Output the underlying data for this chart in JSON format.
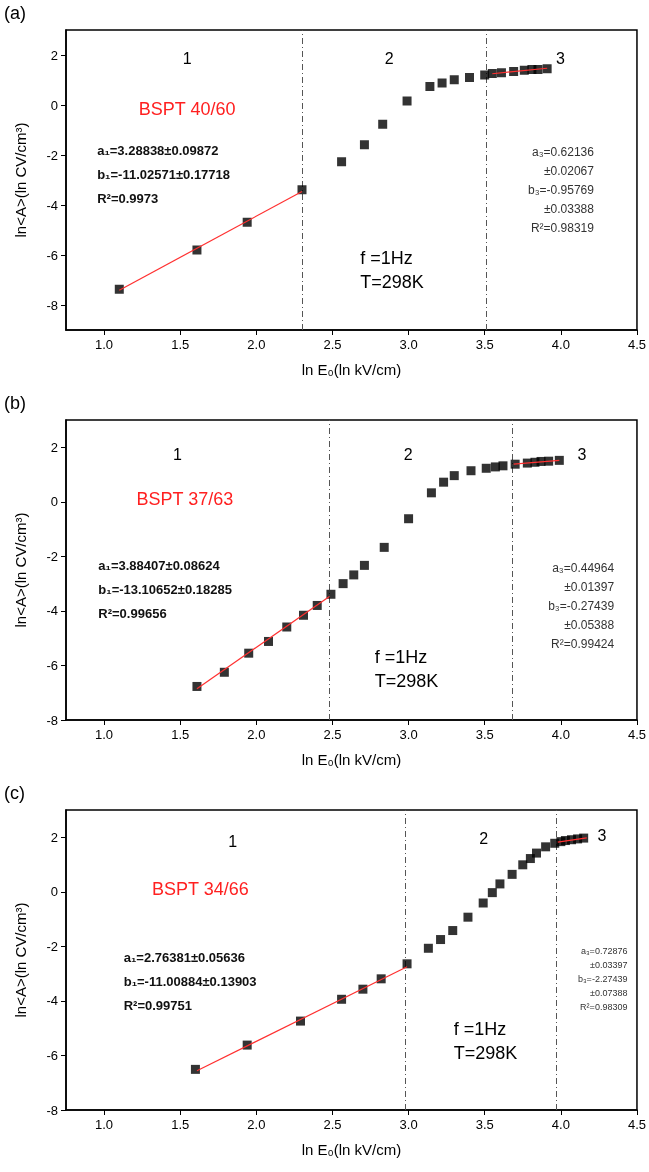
{
  "chart_data": [
    {
      "type": "scatter",
      "title": "(a)",
      "xlabel": "ln E₀(ln kV/cm)",
      "ylabel": "ln<A>(ln CV/cm³)",
      "xlim": [
        0.75,
        4.5
      ],
      "ylim": [
        -9,
        3
      ],
      "xticks": [
        {
          "value": 1,
          "label": "1.0"
        },
        {
          "value": 1.5,
          "label": "1.5"
        },
        {
          "value": 2,
          "label": "2.0"
        },
        {
          "value": 2.5,
          "label": "2.5"
        },
        {
          "value": 3,
          "label": "3.0"
        },
        {
          "value": 3.5,
          "label": "3.5"
        },
        {
          "value": 4,
          "label": "4.0"
        },
        {
          "value": 4.5,
          "label": "4.5"
        }
      ],
      "yticks": [
        -8,
        -6,
        -4,
        -2,
        0,
        2
      ],
      "marker": "square",
      "series": [
        {
          "color": "#000000",
          "x": [
            1.1,
            1.61,
            1.94,
            2.3,
            2.56,
            2.71,
            2.83,
            2.99,
            3.14,
            3.22,
            3.3,
            3.4,
            3.5,
            3.55,
            3.61,
            3.69,
            3.76,
            3.81,
            3.85,
            3.91
          ],
          "values": [
            -7.37,
            -5.8,
            -4.69,
            -3.39,
            -2.27,
            -1.59,
            -0.77,
            0.16,
            0.74,
            0.88,
            1.01,
            1.1,
            1.2,
            1.26,
            1.29,
            1.34,
            1.39,
            1.42,
            1.42,
            1.45
          ]
        },
        {
          "type": "line",
          "color": "#ff3030",
          "marker": "none",
          "x": [
            1.1,
            2.3
          ],
          "values": [
            -7.41,
            -3.46
          ]
        },
        {
          "type": "line",
          "color": "#ff3030",
          "marker": "none",
          "x": [
            3.55,
            3.91
          ],
          "values": [
            1.25,
            1.47
          ]
        }
      ],
      "ref_lines": [
        {
          "axis": "x",
          "value": 2.3,
          "color": "#555555",
          "line_style": "dashed"
        },
        {
          "axis": "x",
          "value": 3.51,
          "color": "#555555",
          "line_style": "dashed"
        }
      ],
      "annotations": [
        "1",
        "2",
        "3",
        "BSPT 40/60",
        "a₁=3.28838±0.09872\nb₁=-11.02571±0.17718\nR²=0.9973",
        "a₃=0.62136\n±0.02067\nb₃=-0.95769\n±0.03388\nR²=0.98319",
        "f =1Hz\nT=298K"
      ]
    },
    {
      "type": "scatter",
      "title": "(b)",
      "xlabel": "ln E₀(ln kV/cm)",
      "ylabel": "ln<A>(ln CV/cm³)",
      "xlim": [
        0.75,
        4.5
      ],
      "ylim": [
        -8,
        3
      ],
      "xticks": [
        {
          "value": 1,
          "label": "1.0"
        },
        {
          "value": 1.5,
          "label": "1.5"
        },
        {
          "value": 2,
          "label": "2.0"
        },
        {
          "value": 2.5,
          "label": "2.5"
        },
        {
          "value": 3,
          "label": "3.0"
        },
        {
          "value": 3.5,
          "label": "3.5"
        },
        {
          "value": 4,
          "label": "4.0"
        },
        {
          "value": 4.5,
          "label": "4.5"
        }
      ],
      "yticks": [
        -8,
        -6,
        -4,
        -2,
        0,
        2
      ],
      "marker": "square",
      "series": [
        {
          "color": "#000000",
          "x": [
            1.61,
            1.79,
            1.95,
            2.08,
            2.2,
            2.31,
            2.4,
            2.49,
            2.57,
            2.64,
            2.71,
            2.84,
            3.0,
            3.15,
            3.23,
            3.3,
            3.41,
            3.51,
            3.57,
            3.62,
            3.7,
            3.78,
            3.83,
            3.87,
            3.92,
            3.99
          ],
          "values": [
            -6.77,
            -6.25,
            -5.55,
            -5.12,
            -4.59,
            -4.16,
            -3.8,
            -3.39,
            -3.0,
            -2.68,
            -2.33,
            -1.67,
            -0.62,
            0.33,
            0.72,
            0.96,
            1.14,
            1.23,
            1.28,
            1.32,
            1.38,
            1.42,
            1.45,
            1.48,
            1.49,
            1.52
          ]
        },
        {
          "type": "line",
          "color": "#ff3030",
          "marker": "none",
          "x": [
            1.61,
            2.48
          ],
          "values": [
            -6.85,
            -3.47
          ]
        },
        {
          "type": "line",
          "color": "#ff3030",
          "marker": "none",
          "x": [
            3.69,
            3.99
          ],
          "values": [
            1.38,
            1.52
          ]
        }
      ],
      "ref_lines": [
        {
          "axis": "x",
          "value": 2.48,
          "color": "#555555",
          "line_style": "dashed"
        },
        {
          "axis": "x",
          "value": 3.68,
          "color": "#555555",
          "line_style": "dashed"
        }
      ],
      "annotations": [
        "1",
        "2",
        "3",
        "BSPT 37/63",
        "a₁=3.88407±0.08624\nb₁=-13.10652±0.18285\nR²=0.99656",
        "a₃=0.44964\n±0.01397\nb₃=-0.27439\n±0.05388\nR²=0.99424",
        "f =1Hz\nT=298K"
      ]
    },
    {
      "type": "scatter",
      "title": "(c)",
      "xlabel": "ln E₀(ln kV/cm)",
      "ylabel": "ln<A>(ln CV/cm³)",
      "xlim": [
        0.75,
        4.5
      ],
      "ylim": [
        -8,
        3
      ],
      "xticks": [
        {
          "value": 1,
          "label": "1.0"
        },
        {
          "value": 1.5,
          "label": "1.5"
        },
        {
          "value": 2,
          "label": "2.0"
        },
        {
          "value": 2.5,
          "label": "2.5"
        },
        {
          "value": 3,
          "label": "3.0"
        },
        {
          "value": 3.5,
          "label": "3.5"
        },
        {
          "value": 4,
          "label": "4.0"
        },
        {
          "value": 4.5,
          "label": "4.5"
        }
      ],
      "yticks": [
        -8,
        -6,
        -4,
        -2,
        0,
        2
      ],
      "marker": "square",
      "series": [
        {
          "color": "#000000",
          "x": [
            1.6,
            1.94,
            2.29,
            2.56,
            2.7,
            2.82,
            2.99,
            3.13,
            3.21,
            3.29,
            3.39,
            3.49,
            3.55,
            3.6,
            3.68,
            3.75,
            3.8,
            3.84,
            3.9,
            3.96,
            4.0,
            4.03,
            4.07,
            4.11,
            4.15
          ],
          "values": [
            -6.51,
            -5.62,
            -4.74,
            -3.94,
            -3.57,
            -3.19,
            -2.64,
            -2.07,
            -1.75,
            -1.42,
            -0.93,
            -0.41,
            -0.03,
            0.29,
            0.64,
            0.99,
            1.22,
            1.42,
            1.65,
            1.78,
            1.84,
            1.88,
            1.91,
            1.94,
            1.97
          ]
        },
        {
          "type": "line",
          "color": "#ff3030",
          "marker": "none",
          "x": [
            1.61,
            2.99
          ],
          "values": [
            -6.56,
            -2.75
          ]
        },
        {
          "type": "line",
          "color": "#ff3030",
          "marker": "none",
          "x": [
            3.98,
            4.17
          ],
          "values": [
            1.82,
            1.98
          ]
        }
      ],
      "ref_lines": [
        {
          "axis": "x",
          "value": 2.98,
          "color": "#555555",
          "line_style": "dashed"
        },
        {
          "axis": "x",
          "value": 3.97,
          "color": "#555555",
          "line_style": "dashed"
        }
      ],
      "annotations": [
        "1",
        "2",
        "3",
        "BSPT 34/66",
        "a₁=2.76381±0.05636\nb₁=-11.00884±0.13903\nR²=0.99751",
        "a₃=0.72876\n±0.03397\nb₃=-2.27439\n±0.07388\nR²=0.98309",
        "f =1Hz\nT=298K"
      ]
    }
  ]
}
